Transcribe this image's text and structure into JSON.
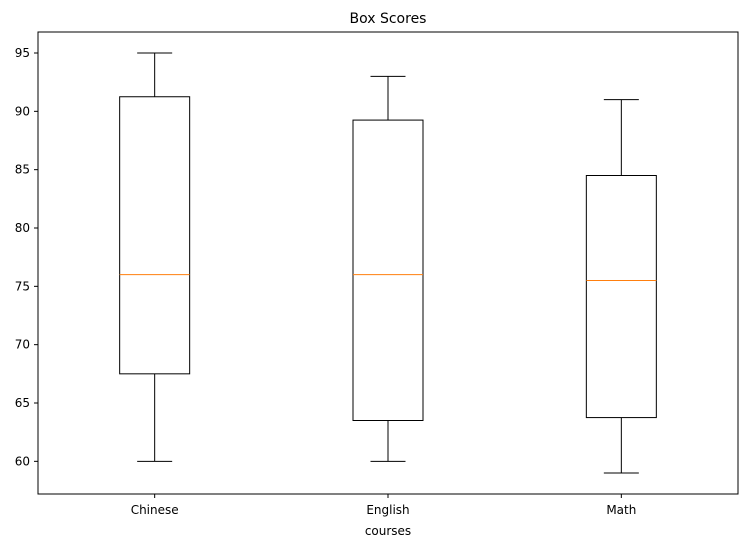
{
  "chart_data": {
    "type": "box",
    "title": "Box Scores",
    "xlabel": "courses",
    "ylabel": "",
    "ylim": [
      57.2,
      96.8
    ],
    "yticks": [
      60,
      65,
      70,
      75,
      80,
      85,
      90,
      95
    ],
    "grid": false,
    "categories": [
      "Chinese",
      "English",
      "Math"
    ],
    "boxes": [
      {
        "label": "Chinese",
        "whisker_low": 60,
        "q1": 67.5,
        "median": 76,
        "q3": 91.25,
        "whisker_high": 95
      },
      {
        "label": "English",
        "whisker_low": 60,
        "q1": 63.5,
        "median": 76,
        "q3": 89.25,
        "whisker_high": 93
      },
      {
        "label": "Math",
        "whisker_low": 59,
        "q1": 63.75,
        "median": 75.5,
        "q3": 84.5,
        "whisker_high": 91
      }
    ],
    "colors": {
      "box": "#000000",
      "median": "#ff7f0e",
      "axes": "#000000"
    }
  }
}
